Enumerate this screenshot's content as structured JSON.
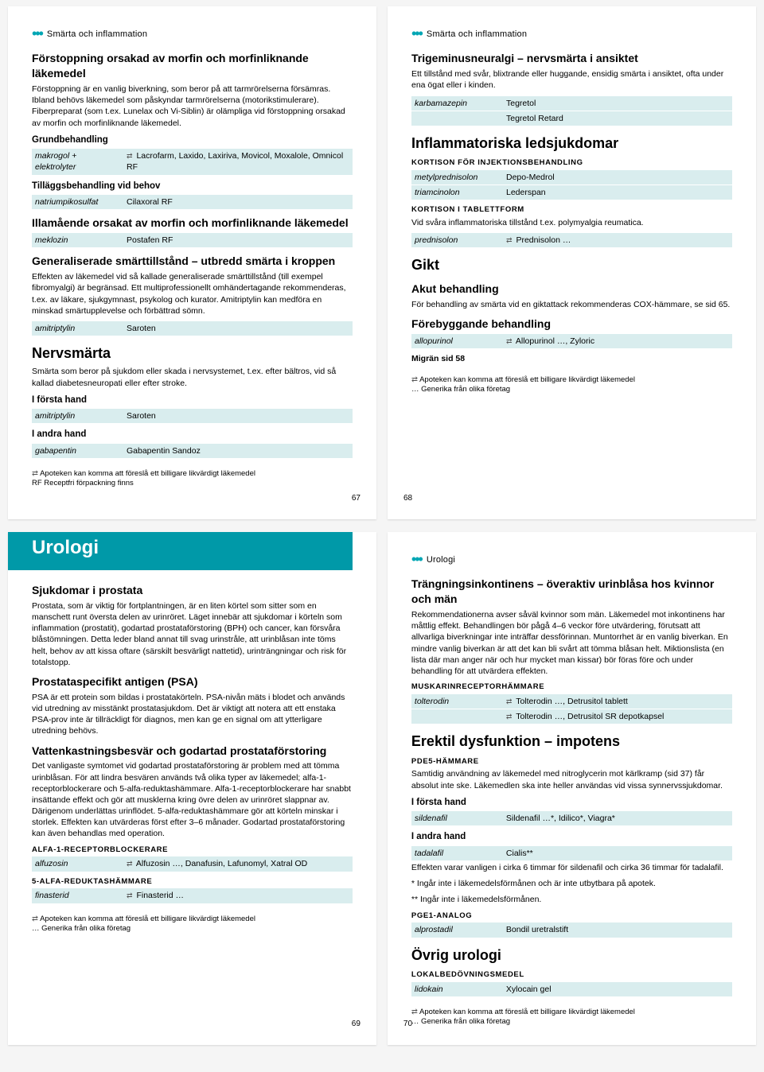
{
  "colors": {
    "accent": "#0099a8",
    "row_bg": "#d9edee",
    "page_bg": "#ffffff"
  },
  "p67": {
    "breadcrumb": "Smärta och inflammation",
    "h1": "Förstoppning orsakad av morfin och morfinliknande läkemedel",
    "p1": "Förstoppning är en vanlig biverkning, som beror på att tarmrörelserna försämras. Ibland behövs läkemedel som påskyndar tarmrörelserna (motorikstimulerare). Fiberpreparat (som t.ex. Lunelax och Vi-Siblin) är olämpliga vid förstoppning orsakad av morfin och morfinliknande läkemedel.",
    "grund_label": "Grundbehandling",
    "r1_gen": "makrogol + elektrolyter",
    "r1_brand": "Lacrofarm, Laxido, Laxiriva, Movicol, Moxalole, Omnicol RF",
    "tillagg_label": "Tilläggsbehandling vid behov",
    "r2_gen": "natriumpikosulfat",
    "r2_brand": "Cilaxoral RF",
    "h2a": "Illamående orsakat av morfin och morfinliknande läkemedel",
    "r3_gen": "meklozin",
    "r3_brand": "Postafen RF",
    "h2b": "Generaliserade smärttillstånd – utbredd smärta i kroppen",
    "p2": "Effekten av läkemedel vid så kallade generaliserade smärttillstånd (till exempel fibromyalgi) är begränsad. Ett multiprofessionellt omhändertagande rekommenderas, t.ex. av läkare, sjukgymnast, psykolog och kurator. Amitriptylin kan medföra en minskad smärtupplevelse och förbättrad sömn.",
    "r4_gen": "amitriptylin",
    "r4_brand": "Saroten",
    "h2c": "Nervsmärta",
    "p3": "Smärta som beror på sjukdom eller skada i nervsystemet, t.ex. efter bältros, vid så kallad diabetesneuropati eller efter stroke.",
    "forsta_label": "I första hand",
    "r5_gen": "amitriptylin",
    "r5_brand": "Saroten",
    "andra_label": "I andra hand",
    "r6_gen": "gabapentin",
    "r6_brand": "Gabapentin Sandoz",
    "note1": "Apoteken kan komma att föreslå ett billigare likvärdigt läkemedel",
    "note2": "RF Receptfri förpackning finns",
    "pagenum": "67"
  },
  "p68": {
    "breadcrumb": "Smärta och inflammation",
    "h1": "Trigeminusneuralgi – nervsmärta i ansiktet",
    "p1": "Ett tillstånd med svår, blixtrande eller huggande, ensidig smärta i ansiktet, ofta under ena ögat eller i kinden.",
    "r1_gen": "karbamazepin",
    "r1_brand_a": "Tegretol",
    "r1_brand_b": "Tegretol Retard",
    "h2a": "Inflammatoriska ledsjukdomar",
    "inj_label": "KORTISON FÖR INJEKTIONSBEHANDLING",
    "r2_gen": "metylprednisolon",
    "r2_brand": "Depo-Medrol",
    "r3_gen": "triamcinolon",
    "r3_brand": "Lederspan",
    "tab_label": "KORTISON I TABLETTFORM",
    "p_tab": "Vid svåra inflammatoriska tillstånd t.ex. polymyalgia reumatica.",
    "r4_gen": "prednisolon",
    "r4_brand": "Prednisolon …",
    "h2b": "Gikt",
    "h3_akut": "Akut behandling",
    "p_akut": "För behandling av smärta vid en giktattack rekommenderas COX-hämmare, se sid 65.",
    "h3_fore": "Förebyggande behandling",
    "r5_gen": "allopurinol",
    "r5_brand": "Allopurinol …, Zyloric",
    "migr": "Migrän sid 58",
    "note1": "Apoteken kan komma att föreslå ett billigare likvärdigt läkemedel",
    "note2": "… Generika från olika företag",
    "pagenum": "68"
  },
  "p69": {
    "banner_title": "Urologi",
    "h1": "Sjukdomar i prostata",
    "p1": "Prostata, som är viktig för fortplantningen, är en liten körtel som sitter som en manschett runt översta delen av urinröret. Läget innebär att sjukdomar i körteln som inflammation (prostatit), godartad prostataförstoring (BPH) och cancer, kan försvåra blåstömningen. Detta leder bland annat till svag urinstråle, att urinblåsan inte töms helt, behov av att kissa oftare (särskilt besvärligt nattetid), urinträngningar och risk för totalstopp.",
    "h2a": "Prostataspecifikt antigen (PSA)",
    "p2": "PSA är ett protein som bildas i prostatakörteln. PSA-nivån mäts i blodet och används vid utredning av misstänkt prostatasjukdom. Det är viktigt att notera att ett enstaka PSA-prov inte är tillräckligt för diagnos, men kan ge en signal om att ytterligare utredning behövs.",
    "h2b": "Vattenkastningsbesvär och godartad prostataförstoring",
    "p3": "Det vanligaste symtomet vid godartad prostataförstoring är problem med att tömma urinblåsan. För att lindra besvären används två olika typer av läkemedel; alfa-1-receptorblockerare och 5-alfa-reduktashämmare. Alfa-1-receptorblockerare har snabbt insättande effekt och gör att musklerna kring övre delen av urinröret slappnar av. Därigenom underlättas urinflödet. 5-alfa-reduktashämmare gör att körteln minskar i storlek. Effekten kan utvärderas först efter 3–6 månader. Godartad prostataförstoring kan även behandlas med operation.",
    "alfa_label": "ALFA-1-RECEPTORBLOCKERARE",
    "r1_gen": "alfuzosin",
    "r1_brand": "Alfuzosin …, Danafusin, Lafunomyl, Xatral OD",
    "red_label": "5-ALFA-REDUKTASHÄMMARE",
    "r2_gen": "finasterid",
    "r2_brand": "Finasterid …",
    "note1": "Apoteken kan komma att föreslå ett billigare likvärdigt läkemedel",
    "note2": "… Generika från olika företag",
    "pagenum": "69"
  },
  "p70": {
    "breadcrumb": "Urologi",
    "h1": "Trängningsinkontinens – överaktiv urinblåsa hos kvinnor och män",
    "p1": "Rekommendationerna avser såväl kvinnor som män. Läkemedel mot inkontinens har måttlig effekt. Behandlingen bör pågå 4–6 veckor före utvärdering, förutsatt att allvarliga biverkningar inte inträffar dessförinnan. Muntorrhet är en vanlig biverkan. En mindre vanlig biverkan är att det kan bli svårt att tömma blåsan helt. Miktionslista (en lista där man anger när och hur mycket man kissar) bör föras före och under behandling för att utvärdera effekten.",
    "musk_label": "MUSKARINRECEPTORHÄMMARE",
    "r1_gen": "tolterodin",
    "r1_brand_a": "Tolterodin …, Detrusitol tablett",
    "r1_brand_b": "Tolterodin …, Detrusitol SR depotkapsel",
    "h2a": "Erektil dysfunktion – impotens",
    "pde_label": "PDE5-HÄMMARE",
    "p_pde": "Samtidig användning av läkemedel med nitroglycerin mot kärlkramp (sid 37) får absolut inte ske. Läkemedlen ska inte heller användas vid vissa synnervssjukdomar.",
    "forsta_label": "I första hand",
    "r2_gen": "sildenafil",
    "r2_brand": "Sildenafil …*, Idilico*, Viagra*",
    "andra_label": "I andra hand",
    "r3_gen": "tadalafil",
    "r3_brand": "Cialis**",
    "p_eff": "Effekten varar vanligen i cirka 6 timmar för sildenafil och cirka 36 timmar för tadalafil.",
    "p_star1": "* Ingår inte i läkemedelsförmånen och är inte utbytbara på apotek.",
    "p_star2": "** Ingår inte i läkemedelsförmånen.",
    "pge_label": "PGE1-ANALOG",
    "r4_gen": "alprostadil",
    "r4_brand": "Bondil uretralstift",
    "h2b": "Övrig urologi",
    "lok_label": "LOKALBEDÖVNINGSMEDEL",
    "r5_gen": "lidokain",
    "r5_brand": "Xylocain gel",
    "note1": "Apoteken kan komma att föreslå ett billigare likvärdigt läkemedel",
    "note2": "… Generika från olika företag",
    "pagenum": "70"
  }
}
